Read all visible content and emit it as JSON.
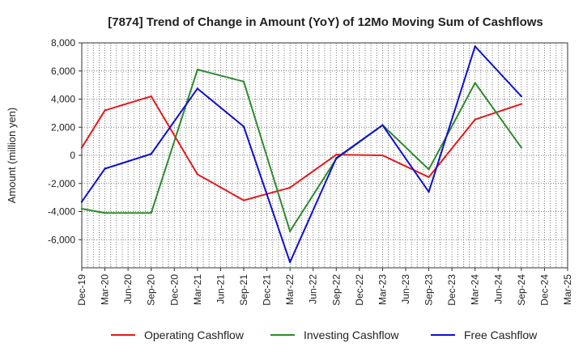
{
  "chart_data": {
    "type": "line",
    "title": "[7874]  Trend of Change in Amount (YoY) of 12Mo Moving Sum of Cashflows",
    "xlabel": "",
    "ylabel": "Amount (million yen)",
    "categories": [
      "Dec-19",
      "Mar-20",
      "Jun-20",
      "Sep-20",
      "Dec-20",
      "Mar-21",
      "Jun-21",
      "Sep-21",
      "Dec-21",
      "Mar-22",
      "Jun-22",
      "Sep-22",
      "Dec-22",
      "Mar-23",
      "Jun-23",
      "Sep-23",
      "Dec-23",
      "Mar-24",
      "Jun-24",
      "Sep-24",
      "Dec-24",
      "Mar-25"
    ],
    "ylim": [
      -8000,
      8000
    ],
    "yticks": [
      8000,
      6000,
      4000,
      2000,
      0,
      -2000,
      -4000,
      -6000
    ],
    "ytick_labels": [
      "8,000",
      "6,000",
      "4,000",
      "2,000",
      "0",
      "-2,000",
      "-4,000",
      "-6,000"
    ],
    "grid": true,
    "legend_position": "bottom",
    "series": [
      {
        "name": "Operating Cashflow",
        "color": "#e31a1c",
        "x": [
          "Dec-19",
          "Mar-20",
          "Sep-20",
          "Mar-21",
          "Sep-21",
          "Mar-22",
          "Sep-22",
          "Mar-23",
          "Sep-23",
          "Mar-24",
          "Sep-24"
        ],
        "values": [
          550,
          3200,
          4200,
          -1350,
          -3200,
          -2300,
          50,
          0,
          -1550,
          2550,
          3650
        ]
      },
      {
        "name": "Investing Cashflow",
        "color": "#2e8b2e",
        "x": [
          "Dec-19",
          "Mar-20",
          "Sep-20",
          "Mar-21",
          "Sep-21",
          "Mar-22",
          "Sep-22",
          "Mar-23",
          "Sep-23",
          "Mar-24",
          "Sep-24"
        ],
        "values": [
          -3800,
          -4100,
          -4100,
          6100,
          5250,
          -5400,
          -250,
          2150,
          -1000,
          5150,
          550
        ]
      },
      {
        "name": "Free Cashflow",
        "color": "#1010d0",
        "x": [
          "Dec-19",
          "Mar-20",
          "Sep-20",
          "Mar-21",
          "Sep-21",
          "Mar-22",
          "Sep-22",
          "Mar-23",
          "Sep-23",
          "Mar-24",
          "Sep-24"
        ],
        "values": [
          -3300,
          -950,
          100,
          4750,
          2050,
          -7600,
          -200,
          2150,
          -2600,
          7750,
          4200
        ]
      }
    ]
  }
}
